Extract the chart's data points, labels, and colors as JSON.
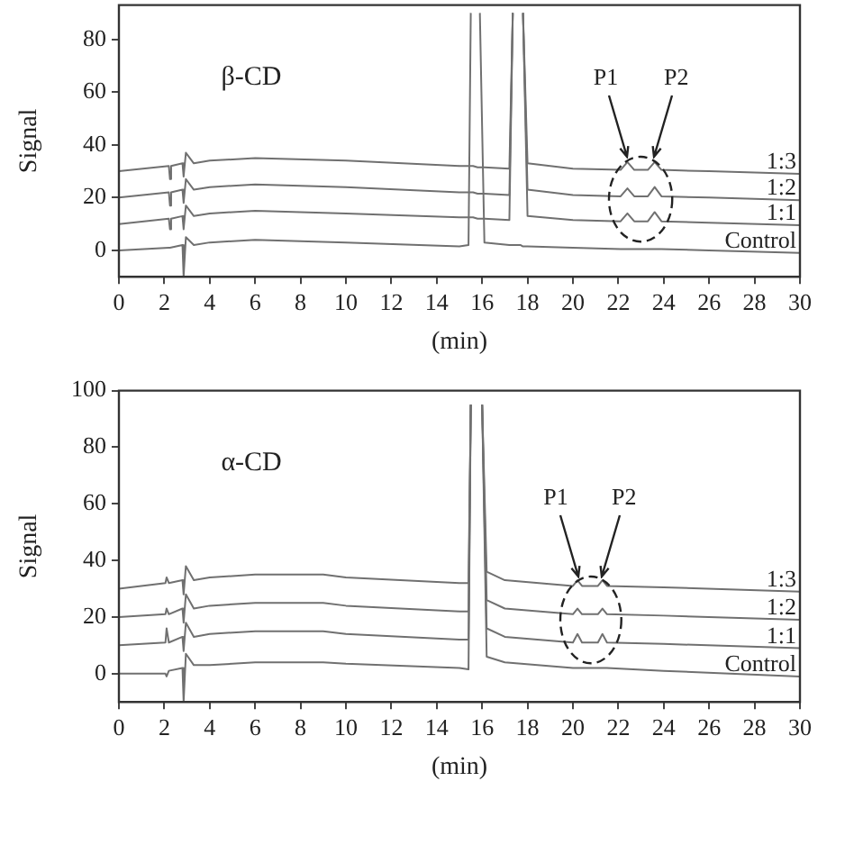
{
  "chart_data": [
    {
      "type": "line",
      "title": "β-CD",
      "xlabel": "(min)",
      "ylabel": "Signal",
      "xlim": [
        0,
        30
      ],
      "xticks": [
        0,
        2,
        4,
        6,
        8,
        10,
        12,
        14,
        16,
        18,
        20,
        22,
        24,
        26,
        28,
        30
      ],
      "ylim": [
        -10,
        93
      ],
      "yticks": [
        0,
        20,
        40,
        60,
        80
      ],
      "grid": false,
      "legend": false,
      "marker": "none",
      "line_style": "solid",
      "x": [
        0,
        2.2,
        2.25,
        2.3,
        2.8,
        2.85,
        2.95,
        3.3,
        4,
        6,
        10,
        15,
        15.4,
        15.5,
        15.6,
        15.8,
        15.9,
        16.1,
        17.2,
        17.35,
        17.45,
        17.7,
        17.8,
        18,
        20,
        22.1,
        22.4,
        22.7,
        23.3,
        23.6,
        23.9,
        26,
        30
      ],
      "annotations": [
        {
          "text": "P1",
          "x": 22.4,
          "y": 34
        },
        {
          "text": "P2",
          "x": 23.6,
          "y": 34
        }
      ],
      "series": [
        {
          "name": "1:3",
          "color": "#707070",
          "values": [
            30,
            32,
            27,
            32,
            33,
            28,
            37,
            33,
            34,
            35,
            34,
            32,
            32,
            32,
            32,
            31.5,
            31.5,
            31.5,
            31,
            90,
            null,
            null,
            90,
            33,
            31,
            30.5,
            33.5,
            30.5,
            30.5,
            33.5,
            30.5,
            30,
            29
          ]
        },
        {
          "name": "1:2",
          "color": "#707070",
          "values": [
            20,
            22,
            17,
            22,
            23,
            18,
            27,
            23,
            24,
            25,
            24,
            22,
            22,
            22,
            22,
            21.5,
            21.5,
            21.5,
            21,
            90,
            null,
            null,
            90,
            23,
            21,
            20.5,
            23.5,
            20.5,
            20.5,
            24,
            20.5,
            20,
            19
          ]
        },
        {
          "name": "1:1",
          "color": "#707070",
          "values": [
            10,
            12,
            8,
            12,
            13,
            8,
            17,
            13,
            14,
            15,
            14,
            12.5,
            12.5,
            12.5,
            12.5,
            12,
            12,
            12,
            11.5,
            90,
            null,
            null,
            90,
            13,
            11.5,
            11,
            14,
            11,
            11,
            14.5,
            11,
            10.5,
            9.5
          ]
        },
        {
          "name": "Control",
          "color": "#707070",
          "values": [
            0,
            1,
            1,
            1,
            2,
            -10,
            5,
            2,
            3,
            4,
            3,
            1.5,
            2,
            90,
            null,
            null,
            90,
            3,
            2,
            2,
            2,
            2,
            1.5,
            1.5,
            1,
            0.5,
            0.5,
            0.5,
            0.5,
            0.5,
            0.5,
            0,
            -1
          ]
        }
      ]
    },
    {
      "type": "line",
      "title": "α-CD",
      "xlabel": "(min)",
      "ylabel": "Signal",
      "xlim": [
        0,
        30
      ],
      "xticks": [
        0,
        2,
        4,
        6,
        8,
        10,
        12,
        14,
        16,
        18,
        20,
        22,
        24,
        26,
        28,
        30
      ],
      "ylim": [
        -10,
        100
      ],
      "yticks": [
        0,
        20,
        40,
        60,
        80,
        100
      ],
      "grid": false,
      "legend": false,
      "marker": "none",
      "line_style": "solid",
      "x": [
        0,
        2.05,
        2.1,
        2.2,
        2.8,
        2.85,
        2.95,
        3.3,
        4,
        6,
        9,
        10,
        15,
        15.4,
        15.5,
        15.6,
        15.9,
        16,
        16.2,
        17,
        20,
        20.2,
        20.4,
        21.1,
        21.3,
        21.5,
        24,
        30
      ],
      "annotations": [
        {
          "text": "P1",
          "x": 20.2,
          "y": 33
        },
        {
          "text": "P2",
          "x": 21.3,
          "y": 33
        }
      ],
      "series": [
        {
          "name": "1:3",
          "color": "#707070",
          "values": [
            30,
            32,
            34,
            32,
            33,
            28,
            38,
            33,
            34,
            35,
            35,
            34,
            32,
            32,
            95,
            null,
            null,
            95,
            36,
            33,
            31,
            33,
            31,
            31,
            33,
            31,
            30.5,
            29
          ]
        },
        {
          "name": "1:2",
          "color": "#707070",
          "values": [
            20,
            21,
            23,
            21,
            23,
            18,
            28,
            23,
            24,
            25,
            25,
            24,
            22,
            22,
            95,
            null,
            null,
            95,
            26,
            23,
            21,
            23,
            21,
            21,
            23,
            21,
            20.5,
            19
          ]
        },
        {
          "name": "1:1",
          "color": "#707070",
          "values": [
            10,
            11,
            16,
            11,
            13,
            8,
            18,
            13,
            14,
            15,
            15,
            14,
            12,
            12,
            95,
            null,
            null,
            95,
            16,
            13,
            11,
            14,
            11,
            11,
            14,
            11,
            10.5,
            9
          ]
        },
        {
          "name": "Control",
          "color": "#707070",
          "values": [
            0,
            0,
            -1,
            1,
            2,
            -10,
            7,
            3,
            3,
            4,
            4,
            3.5,
            2,
            1.5,
            95,
            null,
            null,
            95,
            6,
            4,
            2,
            2,
            2,
            2,
            2,
            2,
            1,
            -1
          ]
        }
      ]
    }
  ]
}
